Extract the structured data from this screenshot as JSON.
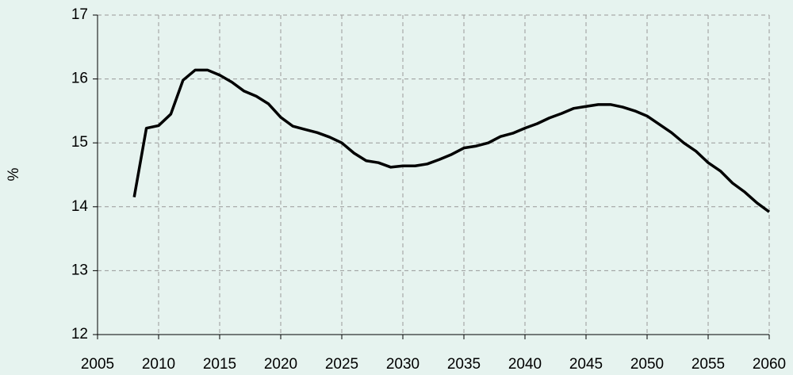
{
  "chart_data": {
    "type": "line",
    "ylabel": "%",
    "x": [
      2008,
      2009,
      2010,
      2011,
      2012,
      2013,
      2014,
      2015,
      2016,
      2017,
      2018,
      2019,
      2020,
      2021,
      2022,
      2023,
      2024,
      2025,
      2026,
      2027,
      2028,
      2029,
      2030,
      2031,
      2032,
      2033,
      2034,
      2035,
      2036,
      2037,
      2038,
      2039,
      2040,
      2041,
      2042,
      2043,
      2044,
      2045,
      2046,
      2047,
      2048,
      2049,
      2050,
      2051,
      2052,
      2053,
      2054,
      2055,
      2056,
      2057,
      2058,
      2059,
      2060
    ],
    "series": [
      {
        "color": "#000000",
        "values": [
          14.15,
          15.23,
          15.27,
          15.45,
          15.98,
          16.14,
          16.14,
          16.06,
          15.95,
          15.81,
          15.73,
          15.61,
          15.4,
          15.26,
          15.21,
          15.16,
          15.09,
          15.0,
          14.84,
          14.72,
          14.69,
          14.62,
          14.64,
          14.64,
          14.67,
          14.74,
          14.82,
          14.92,
          14.95,
          15.0,
          15.1,
          15.15,
          15.23,
          15.3,
          15.39,
          15.46,
          15.54,
          15.57,
          15.6,
          15.6,
          15.56,
          15.5,
          15.42,
          15.29,
          15.16,
          15.0,
          14.87,
          14.69,
          14.56,
          14.37,
          14.23,
          14.06,
          13.92
        ]
      }
    ],
    "xlim": [
      2005,
      2060
    ],
    "xticks": [
      2005,
      2010,
      2015,
      2020,
      2025,
      2030,
      2035,
      2040,
      2045,
      2050,
      2055,
      2060
    ],
    "ylim": [
      12,
      17
    ],
    "yticks": [
      12,
      13,
      14,
      15,
      16,
      17
    ],
    "grid": true
  }
}
